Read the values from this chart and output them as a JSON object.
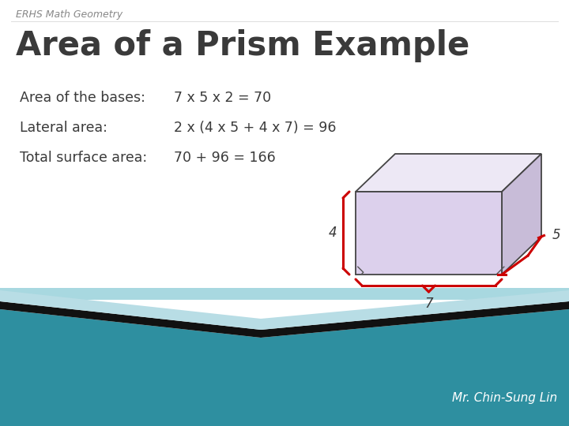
{
  "subtitle": "ERHS Math Geometry",
  "title": "Area of a Prism Example",
  "line1_label": "Area of the bases:",
  "line1_value": "7 x 5 x 2 = 70",
  "line2_label": "Lateral area:",
  "line2_value": "2 x (4 x 5 + 4 x 7) = 96",
  "line3_label": "Total surface area:",
  "line3_value": "70 + 96 = 166",
  "author": "Mr. Chin-Sung Lin",
  "bg_color": "#ffffff",
  "teal_color": "#2e8fa0",
  "teal_light": "#a8d8e0",
  "dark_band": "#111111",
  "title_color": "#3a3a3a",
  "text_color": "#3a3a3a",
  "red_color": "#cc0000",
  "prism_front_fill": "#dcd0ec",
  "prism_side_fill": "#c8bcd8",
  "prism_top_fill": "#ede8f5",
  "prism_edge_color": "#444444",
  "subtitle_color": "#888888"
}
